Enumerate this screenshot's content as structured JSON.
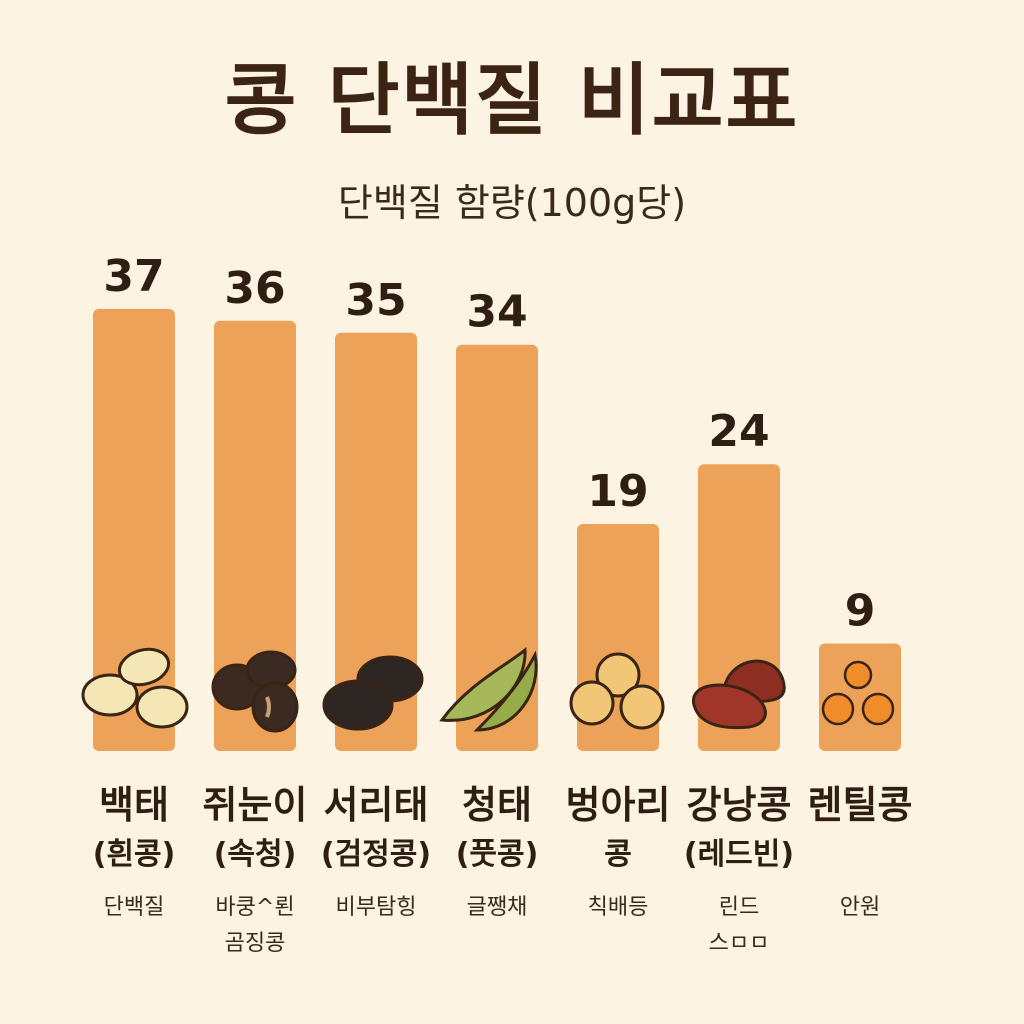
{
  "chart_data": {
    "type": "bar",
    "title": "콩 단백질 비교표",
    "subtitle": "단백질 함량(100g당)",
    "categories": [
      "백태",
      "쥐눈이",
      "서리태",
      "청태",
      "벙아리",
      "강낭콩",
      "렌틸콩"
    ],
    "category_sublabels": [
      "(흰콩)",
      "(속청)",
      "(검정콩)",
      "(풋콩)",
      "콩",
      "(레드빈)",
      ""
    ],
    "category_notes": [
      [
        "단백질"
      ],
      [
        "바쿵^뢴",
        "곰징콩"
      ],
      [
        "비부탐힝"
      ],
      [
        "글쨍채"
      ],
      [
        "칙배등"
      ],
      [
        "린드",
        "스ㅁㅁ"
      ],
      [
        "안원"
      ]
    ],
    "values": [
      37,
      36,
      35,
      34,
      19,
      24,
      9
    ],
    "bean_icons": [
      "white-soybean-icon",
      "small-black-bean-icon",
      "black-soybean-icon",
      "green-pea-pod-icon",
      "chickpea-icon",
      "red-kidney-bean-icon",
      "lentil-icon"
    ],
    "ylim": [
      0,
      40
    ],
    "colors": {
      "bar": "#eca259",
      "background": "#fdf3e3",
      "text": "#2e1f12"
    }
  }
}
